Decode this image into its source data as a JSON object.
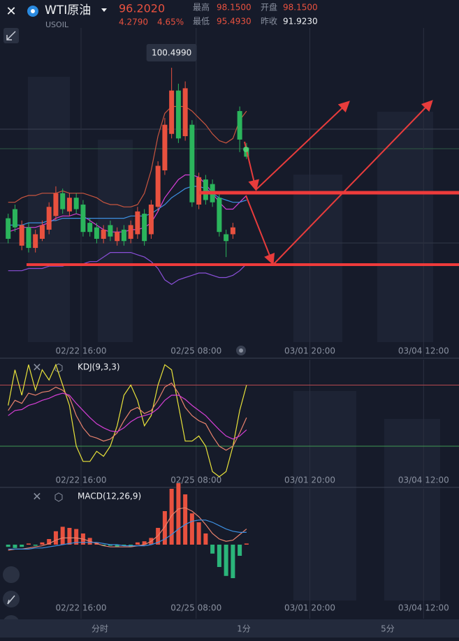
{
  "header": {
    "name": "WTI原油",
    "symbol": "USOIL",
    "price": "96.2020",
    "change": "4.2790",
    "change_pct": "4.65%",
    "stats": [
      {
        "label": "最高",
        "value": "98.1500"
      },
      {
        "label": "开盘",
        "value": "98.1500"
      },
      {
        "label": "最低",
        "value": "95.4930"
      },
      {
        "label": "昨收",
        "value": "91.9230"
      }
    ]
  },
  "chart_data": [
    {
      "type": "candlestick",
      "up_color": "#e8513f",
      "down_color": "#2bb55c",
      "open": [
        93.9,
        94.3,
        92.7,
        93.5,
        92.6,
        93.0,
        93.4,
        94.0,
        95.0,
        94.2,
        94.8,
        94.5,
        93.7,
        93.5,
        93.0,
        93.6,
        92.9,
        93.4,
        93.0,
        93.2,
        94.1,
        93.2,
        94.4,
        96.0,
        97.6,
        99.5,
        97.5,
        98.0,
        94.5,
        95.6,
        95.4,
        94.8,
        93.2,
        93.2,
        98.6,
        97.0
      ],
      "high": [
        94.1,
        94.5,
        93.8,
        93.7,
        93.4,
        93.8,
        94.6,
        95.3,
        95.2,
        95.0,
        95.0,
        94.7,
        93.9,
        93.7,
        93.6,
        93.8,
        93.5,
        93.6,
        93.8,
        94.4,
        94.3,
        94.7,
        96.4,
        98.3,
        100.499,
        99.8,
        99.9,
        98.2,
        95.9,
        95.8,
        95.6,
        95.0,
        93.4,
        93.7,
        98.8,
        97.2
      ],
      "low": [
        92.8,
        93.3,
        92.5,
        92.4,
        92.4,
        92.9,
        93.2,
        93.8,
        94.1,
        94.0,
        94.1,
        93.1,
        93.1,
        92.8,
        92.8,
        92.9,
        92.7,
        92.7,
        92.8,
        93.0,
        92.7,
        93.0,
        94.2,
        95.8,
        97.4,
        97.2,
        97.3,
        94.4,
        94.3,
        94.5,
        94.4,
        93.1,
        92.2,
        93.0,
        96.8,
        96.5
      ],
      "close": [
        93.0,
        93.5,
        93.6,
        92.6,
        93.2,
        93.6,
        94.4,
        95.0,
        94.3,
        94.8,
        94.3,
        93.3,
        93.3,
        93.0,
        93.4,
        93.1,
        93.3,
        92.9,
        93.6,
        94.2,
        92.9,
        94.5,
        96.2,
        98.0,
        99.5,
        97.4,
        99.6,
        94.6,
        95.7,
        94.7,
        94.6,
        93.3,
        92.9,
        93.5,
        97.35,
        96.6
      ],
      "overlays": [
        {
          "color": "#c8553f",
          "values": [
            94.6,
            94.6,
            94.8,
            94.9,
            94.9,
            95.0,
            95.0,
            95.0,
            95.1,
            95.0,
            95.0,
            95.0,
            94.9,
            94.8,
            94.6,
            94.5,
            94.5,
            94.4,
            94.4,
            94.5,
            95.0,
            96.0,
            97.5,
            98.5,
            98.8,
            98.8,
            98.8,
            98.6,
            98.3,
            98.0,
            97.6,
            97.3,
            97.2,
            97.4,
            98.2,
            98.6
          ]
        },
        {
          "color": "#d63fd6",
          "values": [
            93.3,
            93.4,
            93.5,
            93.5,
            93.5,
            93.6,
            93.7,
            93.9,
            94.0,
            94.0,
            94.1,
            94.0,
            93.8,
            93.6,
            93.4,
            93.3,
            93.3,
            93.3,
            93.4,
            93.4,
            93.5,
            93.7,
            94.2,
            94.8,
            95.2,
            95.6,
            95.8,
            95.8,
            95.7,
            95.4,
            95.0,
            94.6,
            94.3,
            94.3,
            94.6,
            94.9
          ]
        },
        {
          "color": "#3d8fe0",
          "values": [
            93.6,
            93.6,
            93.6,
            93.7,
            93.7,
            93.7,
            93.8,
            93.8,
            93.9,
            93.9,
            93.9,
            93.9,
            93.9,
            93.9,
            93.9,
            93.9,
            93.9,
            93.9,
            94.0,
            94.0,
            94.0,
            94.1,
            94.3,
            94.5,
            94.8,
            95.0,
            95.2,
            95.3,
            95.3,
            95.2,
            95.0,
            94.8,
            94.7,
            94.6,
            94.6,
            94.7
          ]
        },
        {
          "color": "#8a4fd8",
          "values": [
            91.6,
            91.6,
            91.6,
            91.7,
            91.7,
            91.7,
            91.8,
            91.8,
            91.8,
            91.9,
            91.9,
            91.9,
            92.0,
            92.0,
            92.2,
            92.4,
            92.4,
            92.4,
            92.4,
            92.3,
            92.2,
            92.0,
            91.7,
            91.2,
            91.0,
            91.2,
            91.3,
            91.4,
            91.5,
            91.5,
            91.4,
            91.3,
            91.3,
            91.4,
            91.6,
            91.9
          ]
        }
      ],
      "annotation": "100.4990",
      "ylim": [
        90,
        102
      ],
      "xlim": [
        -1.2,
        66.2
      ],
      "xticks": [
        {
          "value": 10.7,
          "label": "02/22 16:00"
        },
        {
          "value": 27.6,
          "label": "02/25 08:00"
        },
        {
          "value": 44.3,
          "label": "03/01 20:00"
        },
        {
          "value": 61.0,
          "label": "03/04 12:00"
        }
      ]
    },
    {
      "type": "line",
      "title": "KDJ(9,3,3)",
      "ylim": [
        -15,
        105
      ],
      "xlim": [
        -1.2,
        66.2
      ],
      "levels": [
        {
          "value": 80,
          "color": "#b5484f"
        },
        {
          "value": 20,
          "color": "#3f9a52"
        }
      ],
      "series": [
        {
          "color": "#e9e33a",
          "values": [
            60,
            95,
            70,
            100,
            75,
            95,
            85,
            100,
            80,
            60,
            20,
            5,
            5,
            15,
            10,
            20,
            40,
            70,
            80,
            65,
            40,
            50,
            80,
            100,
            95,
            60,
            25,
            25,
            30,
            20,
            -5,
            -10,
            -5,
            20,
            55,
            80
          ]
        },
        {
          "color": "#e9826d",
          "values": [
            55,
            65,
            62,
            72,
            70,
            73,
            74,
            78,
            75,
            68,
            50,
            38,
            30,
            28,
            25,
            27,
            33,
            45,
            55,
            58,
            52,
            55,
            65,
            78,
            82,
            72,
            58,
            50,
            45,
            42,
            30,
            20,
            16,
            20,
            33,
            48
          ]
        },
        {
          "color": "#d63fd6",
          "values": [
            50,
            55,
            56,
            60,
            62,
            65,
            67,
            70,
            72,
            70,
            62,
            55,
            48,
            42,
            38,
            35,
            34,
            38,
            44,
            48,
            50,
            52,
            57,
            65,
            70,
            70,
            66,
            60,
            55,
            50,
            43,
            36,
            30,
            27,
            30,
            36
          ]
        }
      ],
      "xticks": [
        {
          "value": 10.7,
          "label": "02/22 16:00"
        },
        {
          "value": 27.6,
          "label": "02/25 08:00"
        },
        {
          "value": 44.3,
          "label": "03/01 20:00"
        },
        {
          "value": 61.0,
          "label": "03/04 12:00"
        }
      ]
    },
    {
      "type": "macd",
      "title": "MACD(12,26,9)",
      "ylim": [
        -0.5,
        0.5
      ],
      "xlim": [
        -1.2,
        66.2
      ],
      "up_color": "#e8513f",
      "down_color": "#2bb57a",
      "values": [
        -0.02,
        -0.03,
        -0.02,
        0.01,
        -0.01,
        0.02,
        0.05,
        0.12,
        0.16,
        0.15,
        0.14,
        0.1,
        0.06,
        0.02,
        -0.01,
        -0.01,
        -0.02,
        -0.01,
        -0.02,
        0.02,
        0.03,
        0.06,
        0.15,
        0.3,
        0.5,
        0.55,
        0.45,
        0.28,
        0.2,
        0.1,
        -0.08,
        -0.2,
        -0.28,
        -0.3,
        -0.1,
        0.01
      ],
      "series": [
        {
          "color": "#e9826d",
          "values": [
            -0.05,
            -0.04,
            -0.04,
            -0.03,
            -0.02,
            -0.01,
            0.01,
            0.04,
            0.06,
            0.06,
            0.06,
            0.05,
            0.03,
            0.01,
            -0.01,
            -0.02,
            -0.02,
            -0.02,
            -0.02,
            -0.01,
            0,
            0.03,
            0.08,
            0.16,
            0.26,
            0.32,
            0.33,
            0.3,
            0.25,
            0.18,
            0.1,
            0.05,
            0.03,
            0.04,
            0.09,
            0.14
          ]
        },
        {
          "color": "#3d8fe0",
          "values": [
            -0.04,
            -0.04,
            -0.04,
            -0.04,
            -0.03,
            -0.03,
            -0.02,
            -0.01,
            0,
            0.01,
            0.02,
            0.02,
            0.02,
            0.02,
            0.01,
            0,
            0,
            -0.01,
            -0.01,
            -0.01,
            -0.01,
            0,
            0.02,
            0.05,
            0.09,
            0.14,
            0.18,
            0.21,
            0.22,
            0.22,
            0.2,
            0.17,
            0.14,
            0.12,
            0.11,
            0.11
          ]
        }
      ],
      "xticks": [
        {
          "value": 10.7,
          "label": "02/22 16:00"
        },
        {
          "value": 27.6,
          "label": "02/25 08:00"
        },
        {
          "value": 44.3,
          "label": "03/01 20:00"
        },
        {
          "value": 61.0,
          "label": "03/04 12:00"
        }
      ]
    }
  ],
  "tabs": [
    "分时",
    "1分",
    "5分"
  ]
}
